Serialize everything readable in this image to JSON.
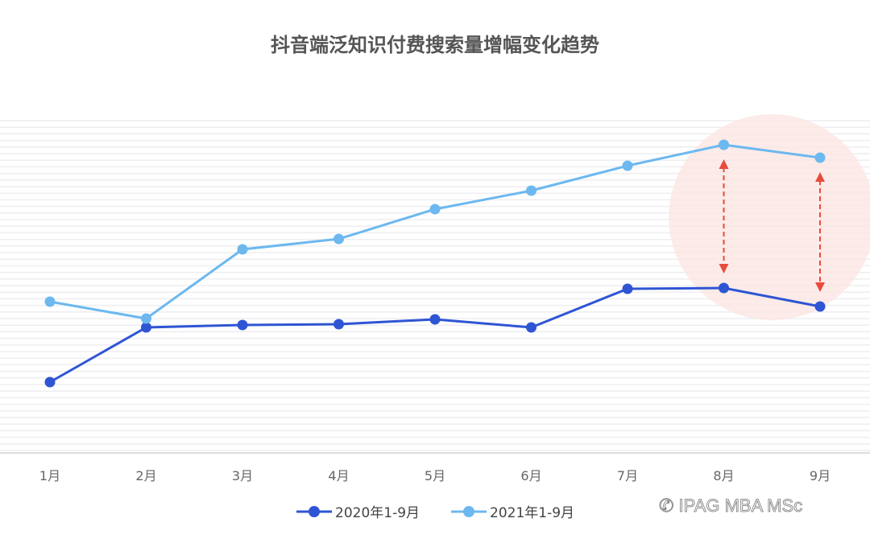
{
  "chart_data": {
    "type": "line",
    "title": "抖音端泛知识付费搜索量增幅变化趋势",
    "categories": [
      "1月",
      "2月",
      "3月",
      "4月",
      "5月",
      "6月",
      "7月",
      "8月",
      "9月"
    ],
    "series": [
      {
        "name": "2020年1-9月",
        "color": "#2f55d4",
        "values": [
          88,
          156,
          159,
          160,
          166,
          156,
          204,
          205,
          182
        ]
      },
      {
        "name": "2021年1-9月",
        "color": "#6cb8ef",
        "values": [
          188,
          167,
          253,
          266,
          303,
          326,
          357,
          383,
          367
        ]
      }
    ],
    "ylim": [
      0,
      415
    ],
    "y_axis_labels_shown": false,
    "grid": true,
    "legend_position": "bottom",
    "annotations": {
      "highlight_categories": [
        "8月",
        "9月"
      ],
      "highlight_color": "#fbe6e2",
      "arrow_color": "#e84b3c"
    }
  },
  "watermark": "IPAG MBA MSc"
}
